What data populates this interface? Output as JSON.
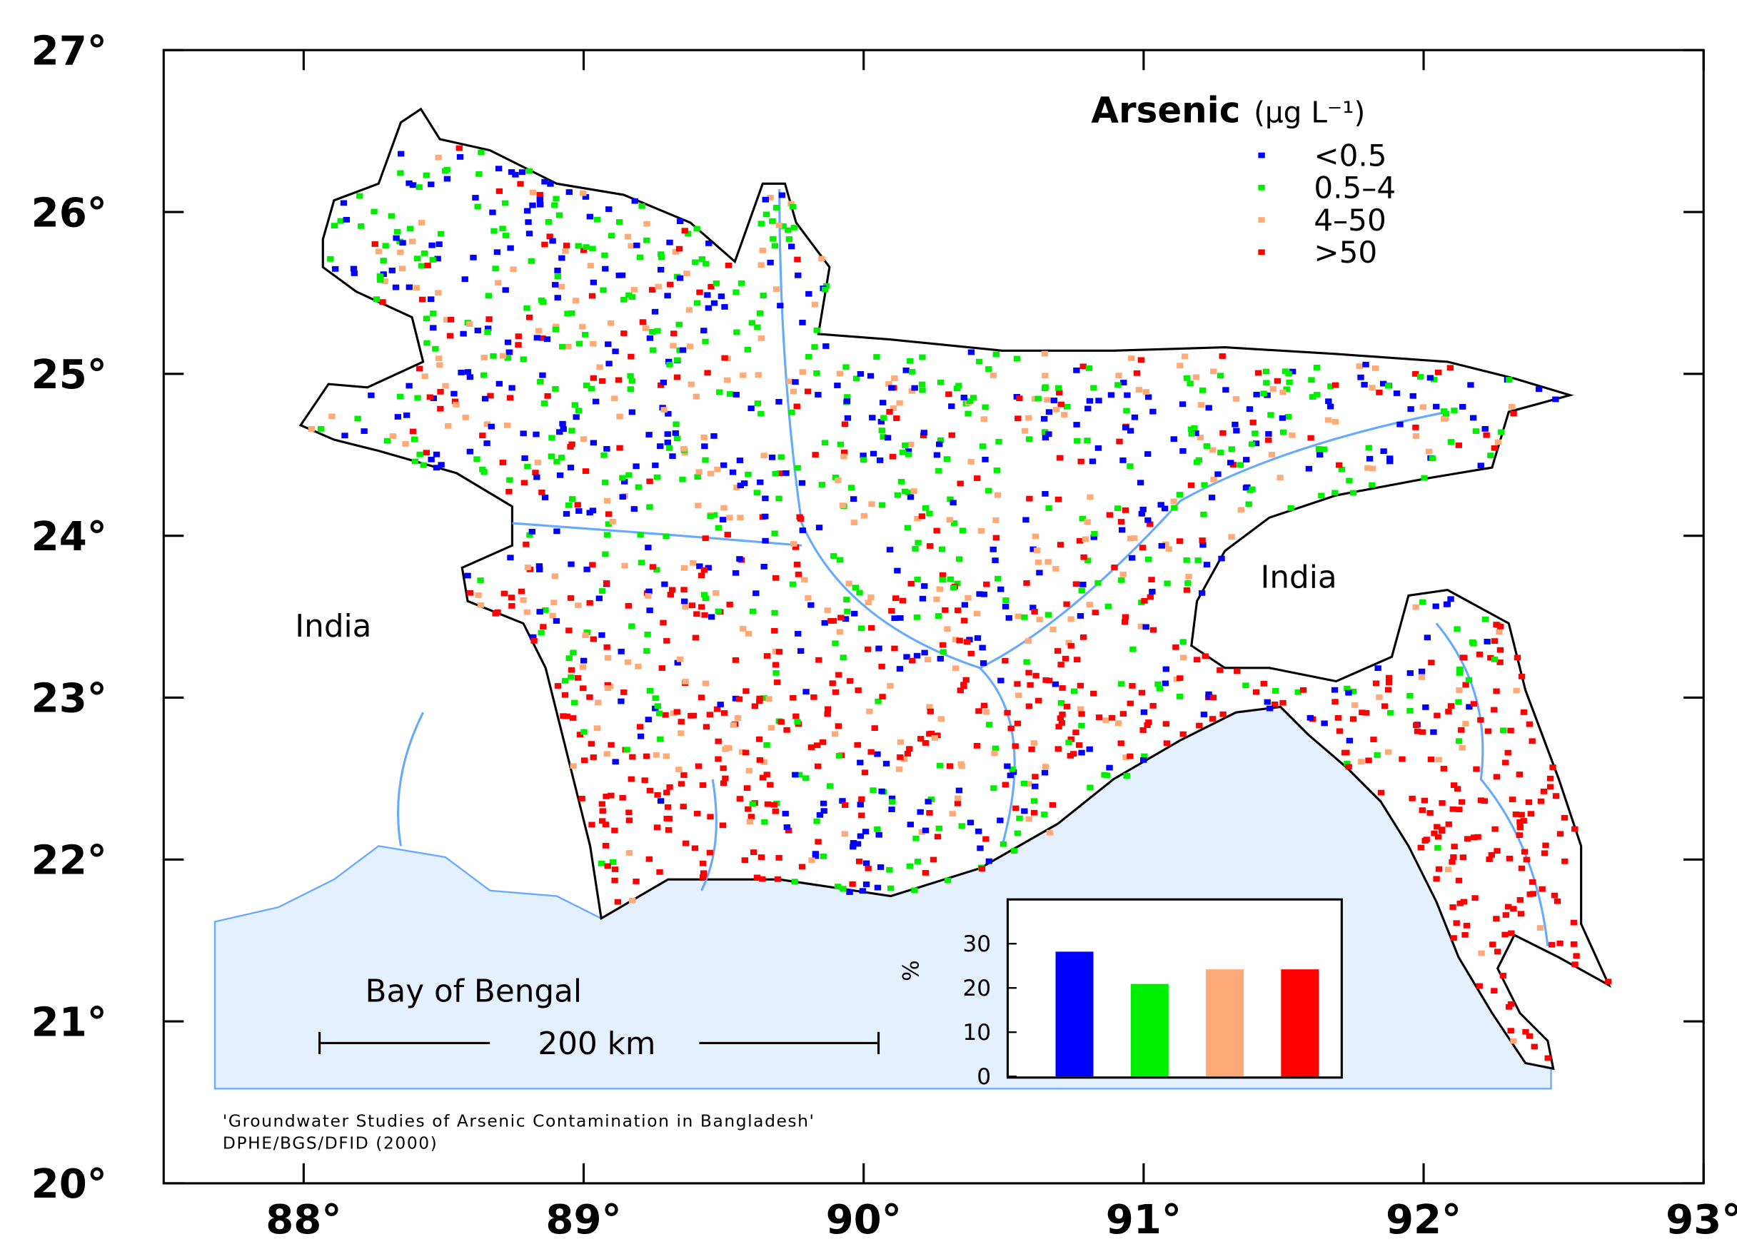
{
  "map": {
    "xlim": [
      87.5,
      93
    ],
    "ylim": [
      20,
      27
    ],
    "lat_ticks": [
      {
        "value": 27,
        "label": "27°"
      },
      {
        "value": 26,
        "label": "26°"
      },
      {
        "value": 25,
        "label": "25°"
      },
      {
        "value": 24,
        "label": "24°"
      },
      {
        "value": 23,
        "label": "23°"
      },
      {
        "value": 22,
        "label": "22°"
      },
      {
        "value": 21,
        "label": "21°"
      },
      {
        "value": 20,
        "label": "20°"
      }
    ],
    "lon_ticks": [
      {
        "value": 88,
        "label": "88°"
      },
      {
        "value": 89,
        "label": "89°"
      },
      {
        "value": 90,
        "label": "90°"
      },
      {
        "value": 91,
        "label": "91°"
      },
      {
        "value": 92,
        "label": "92°"
      },
      {
        "value": 93,
        "label": "93°"
      }
    ],
    "legend": {
      "title": "Arsenic",
      "unit": "(µg L⁻¹)",
      "entries": [
        {
          "label": "<0.5",
          "color": "#0000ff"
        },
        {
          "label": "0.5–4",
          "color": "#00ee00"
        },
        {
          "label": "4–50",
          "color": "#ffaa77"
        },
        {
          "label": ">50",
          "color": "#ff0000"
        }
      ]
    },
    "labels": {
      "india_west": "India",
      "india_east": "India",
      "sea": "Bay of Bengal",
      "scale": "200 km"
    },
    "source": [
      "'Groundwater Studies of Arsenic Contamination in Bangladesh'",
      "DPHE/BGS/DFID (2000)"
    ]
  },
  "chart_data": {
    "type": "bar",
    "ylabel": "%",
    "categories": [
      null,
      null,
      null,
      null
    ],
    "values": [
      28.2,
      20.9,
      24.2,
      24.2
    ],
    "colors": [
      "#0000ff",
      "#00ee00",
      "#ffaa77",
      "#ff0000"
    ],
    "ylim": [
      0,
      40
    ],
    "yticks": [
      0,
      10,
      20,
      30
    ]
  }
}
